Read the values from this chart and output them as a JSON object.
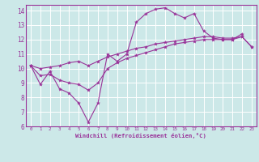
{
  "background_color": "#cce8e8",
  "grid_color": "#ffffff",
  "line_color": "#993399",
  "xlabel": "Windchill (Refroidissement éolien,°C)",
  "xlim": [
    -0.5,
    23.5
  ],
  "ylim": [
    6,
    14.4
  ],
  "xticks": [
    0,
    1,
    2,
    3,
    4,
    5,
    6,
    7,
    8,
    9,
    10,
    11,
    12,
    13,
    14,
    15,
    16,
    17,
    18,
    19,
    20,
    21,
    22,
    23
  ],
  "yticks": [
    6,
    7,
    8,
    9,
    10,
    11,
    12,
    13,
    14
  ],
  "series1_x": [
    0,
    1,
    2,
    3,
    4,
    5,
    6,
    7,
    8,
    9,
    10,
    11,
    12,
    13,
    14,
    15,
    16,
    17,
    18,
    19,
    20,
    21,
    22
  ],
  "series1_y": [
    10.2,
    8.9,
    9.8,
    8.6,
    8.3,
    7.6,
    6.3,
    7.6,
    11.0,
    10.5,
    11.0,
    13.2,
    13.8,
    14.1,
    14.2,
    13.8,
    13.5,
    13.8,
    12.6,
    12.1,
    12.0,
    12.0,
    12.4
  ],
  "series2_x": [
    0,
    1,
    2,
    3,
    4,
    5,
    6,
    7,
    8,
    9,
    10,
    11,
    12,
    13,
    14,
    15,
    16,
    17,
    18,
    19,
    20,
    21,
    22,
    23
  ],
  "series2_y": [
    10.2,
    10.0,
    10.1,
    10.2,
    10.4,
    10.5,
    10.2,
    10.5,
    10.8,
    11.0,
    11.2,
    11.4,
    11.5,
    11.7,
    11.8,
    11.9,
    12.0,
    12.1,
    12.2,
    12.2,
    12.1,
    12.1,
    12.2,
    11.5
  ],
  "series3_x": [
    0,
    1,
    2,
    3,
    4,
    5,
    6,
    7,
    8,
    9,
    10,
    11,
    12,
    13,
    14,
    15,
    16,
    17,
    18,
    19,
    20,
    21,
    22,
    23
  ],
  "series3_y": [
    10.2,
    9.5,
    9.6,
    9.2,
    9.0,
    8.9,
    8.5,
    9.0,
    10.0,
    10.4,
    10.7,
    10.9,
    11.1,
    11.3,
    11.5,
    11.7,
    11.8,
    11.9,
    12.0,
    12.0,
    12.0,
    12.0,
    12.2,
    11.5
  ]
}
